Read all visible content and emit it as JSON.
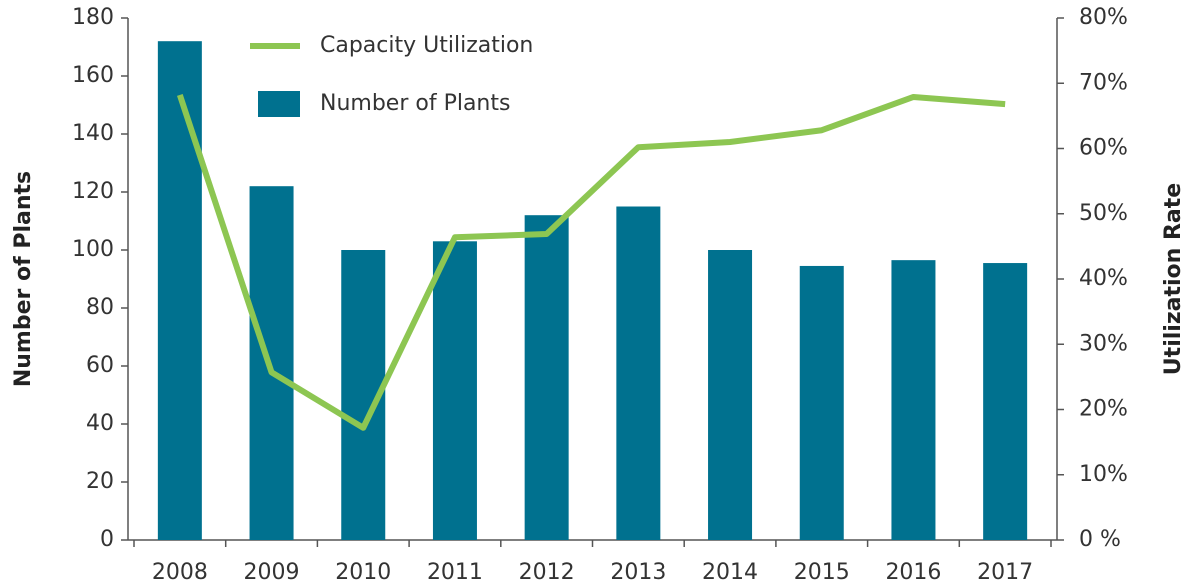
{
  "chart_data": {
    "type": "bar_line",
    "categories": [
      "2008",
      "2009",
      "2010",
      "2011",
      "2012",
      "2013",
      "2014",
      "2015",
      "2016",
      "2017"
    ],
    "series": [
      {
        "name": "Number of Plants",
        "type": "bar",
        "color": "#00718f",
        "axis": "y",
        "values": [
          172,
          122,
          100,
          103,
          112,
          115,
          100,
          94.5,
          96.5,
          95.5
        ]
      },
      {
        "name": "Capacity Utilization",
        "type": "line",
        "color": "#8dc652",
        "axis": "y2",
        "values": [
          68.2,
          25.7,
          17.2,
          46.4,
          46.9,
          60.2,
          61,
          62.8,
          67.9,
          66.8
        ]
      }
    ],
    "ylabel": "Number of Plants",
    "y2label": "Utilization Rate",
    "ylim": [
      0,
      180
    ],
    "yticks": [
      0,
      20,
      40,
      60,
      80,
      100,
      120,
      140,
      160,
      180
    ],
    "y2lim": [
      0,
      80
    ],
    "y2ticks": [
      {
        "value": 0,
        "label": "0 %"
      },
      {
        "value": 10,
        "label": "10%"
      },
      {
        "value": 20,
        "label": "20%"
      },
      {
        "value": 30,
        "label": "30%"
      },
      {
        "value": 40,
        "label": "40%"
      },
      {
        "value": 50,
        "label": "50%"
      },
      {
        "value": 60,
        "label": "60%"
      },
      {
        "value": 70,
        "label": "70%"
      },
      {
        "value": 80,
        "label": "80%"
      }
    ],
    "legend": "upper left"
  }
}
